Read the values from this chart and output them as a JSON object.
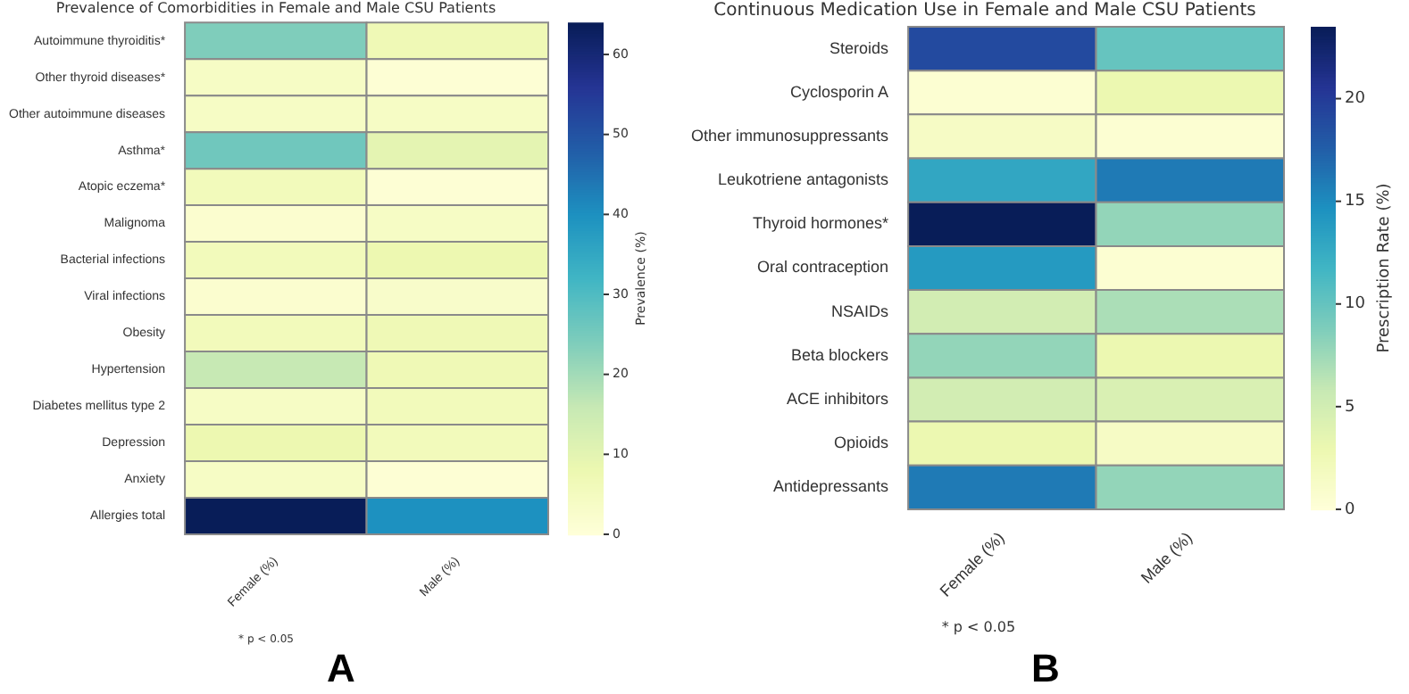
{
  "chart_data": [
    {
      "type": "heatmap",
      "title": "Prevalence of Comorbidities in Female and Male CSU Patients",
      "categories": [
        "Female (%)",
        "Male (%)"
      ],
      "y_categories": [
        "Autoimmune thyroiditis*",
        "Other thyroid diseases*",
        "Other autoimmune diseases",
        "Asthma*",
        "Atopic eczema*",
        "Malignoma",
        "Bacterial infections",
        "Viral infections",
        "Obesity",
        "Hypertension",
        "Diabetes mellitus type 2",
        "Depression",
        "Anxiety",
        "Allergies total"
      ],
      "cells": [
        [
          24,
          7
        ],
        [
          4,
          1
        ],
        [
          4,
          4
        ],
        [
          26,
          10
        ],
        [
          6,
          1
        ],
        [
          2,
          4
        ],
        [
          6,
          8
        ],
        [
          2,
          3
        ],
        [
          6,
          7
        ],
        [
          16,
          7
        ],
        [
          4,
          6
        ],
        [
          8,
          6
        ],
        [
          4,
          1
        ],
        [
          64,
          40
        ]
      ],
      "clim": [
        0,
        64
      ],
      "cticks": [
        0,
        10,
        20,
        30,
        40,
        50,
        60
      ],
      "clabel": "Prevalence (%)",
      "annotations": [
        "* p < 0.05",
        "A"
      ]
    },
    {
      "type": "heatmap",
      "title": "Continuous Medication Use in Female and Male CSU Patients",
      "categories": [
        "Female (%)",
        "Male (%)"
      ],
      "y_categories": [
        "Steroids",
        "Cyclosporin A",
        "Other immunosuppressants",
        "Leukotriene antagonists",
        "Thyroid hormones*",
        "Oral contraception",
        "NSAIDs",
        "Beta blockers",
        "ACE inhibitors",
        "Opioids",
        "Antidepressants"
      ],
      "cells": [
        [
          19,
          10
        ],
        [
          0.5,
          3
        ],
        [
          1.5,
          0.5
        ],
        [
          13,
          16
        ],
        [
          23.5,
          8
        ],
        [
          14,
          0.5
        ],
        [
          5,
          7
        ],
        [
          8,
          3
        ],
        [
          5,
          4.5
        ],
        [
          3,
          1.5
        ],
        [
          16,
          8
        ]
      ],
      "clim": [
        0,
        23.5
      ],
      "cticks": [
        0,
        5,
        10,
        15,
        20
      ],
      "clabel": "Prescription Rate (%)",
      "annotations": [
        "* p < 0.05",
        "B"
      ]
    }
  ]
}
